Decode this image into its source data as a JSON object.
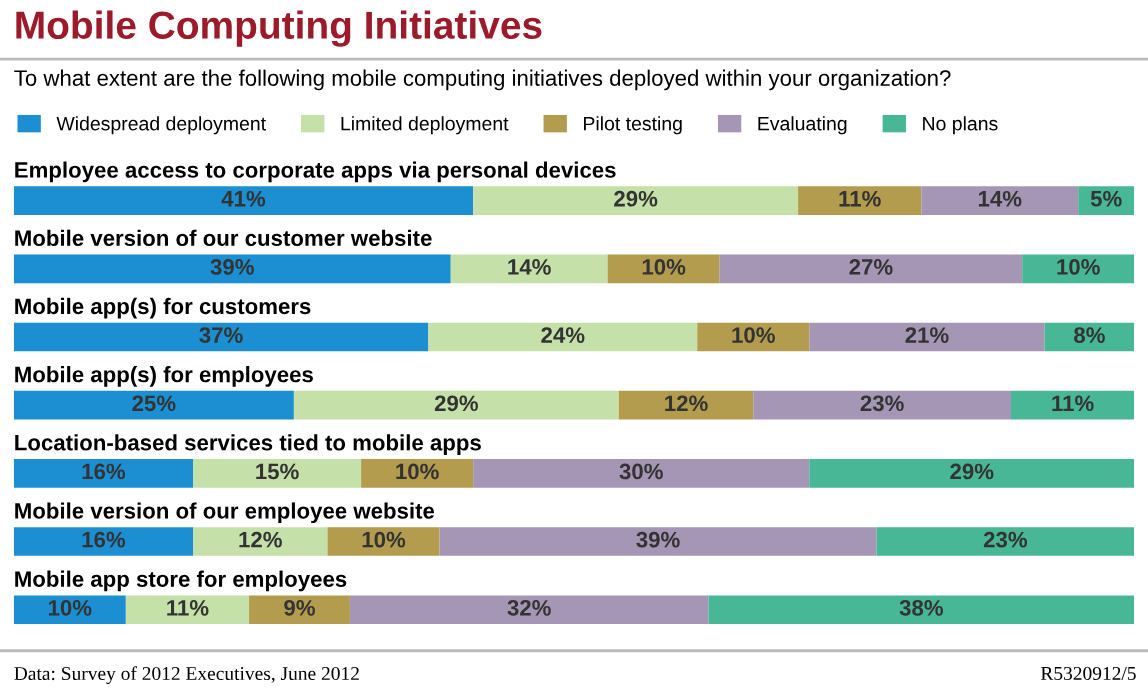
{
  "chart_data": {
    "type": "bar",
    "orientation": "horizontal",
    "stacked": true,
    "title": "Mobile Computing Initiatives",
    "subtitle": "To what extent are the following mobile computing initiatives deployed within your organization?",
    "categories": [
      "Employee access to corporate apps via personal devices",
      "Mobile version of our customer website",
      "Mobile app(s) for customers",
      "Mobile app(s) for employees",
      "Location-based services tied to mobile apps",
      "Mobile version of our employee website",
      "Mobile app store for employees"
    ],
    "series": [
      {
        "name": "Widespread deployment",
        "color": "#1b8fd2",
        "values": [
          41,
          39,
          37,
          25,
          16,
          16,
          10
        ],
        "value_labels": [
          "41%",
          "39%",
          "37%",
          "25%",
          "16%",
          "16%",
          "10%"
        ]
      },
      {
        "name": "Limited deployment",
        "color": "#c5e0a8",
        "values": [
          29,
          14,
          24,
          29,
          15,
          12,
          11
        ],
        "value_labels": [
          "29%",
          "14%",
          "24%",
          "29%",
          "15%",
          "12%",
          "11%"
        ]
      },
      {
        "name": "Pilot testing",
        "color": "#b39c4e",
        "values": [
          11,
          10,
          10,
          12,
          10,
          10,
          9
        ],
        "value_labels": [
          "11%",
          "10%",
          "10%",
          "12%",
          "10%",
          "10%",
          "9%"
        ]
      },
      {
        "name": "Evaluating",
        "color": "#a596b5",
        "values": [
          14,
          27,
          21,
          23,
          30,
          39,
          32
        ],
        "value_labels": [
          "14%",
          "27%",
          "21%",
          "23%",
          "30%",
          "39%",
          "32%"
        ]
      },
      {
        "name": "No plans",
        "color": "#48b795",
        "values": [
          5,
          10,
          8,
          11,
          29,
          23,
          38
        ],
        "value_labels": [
          "5%",
          "10%",
          "8%",
          "11%",
          "29%",
          "23%",
          "38%"
        ]
      }
    ],
    "xlim": [
      0,
      100
    ],
    "tick_labels": false,
    "legend": "top",
    "annotations": [
      "Data: Survey of 2012 Executives, June 2012",
      "R5320912/5"
    ]
  }
}
